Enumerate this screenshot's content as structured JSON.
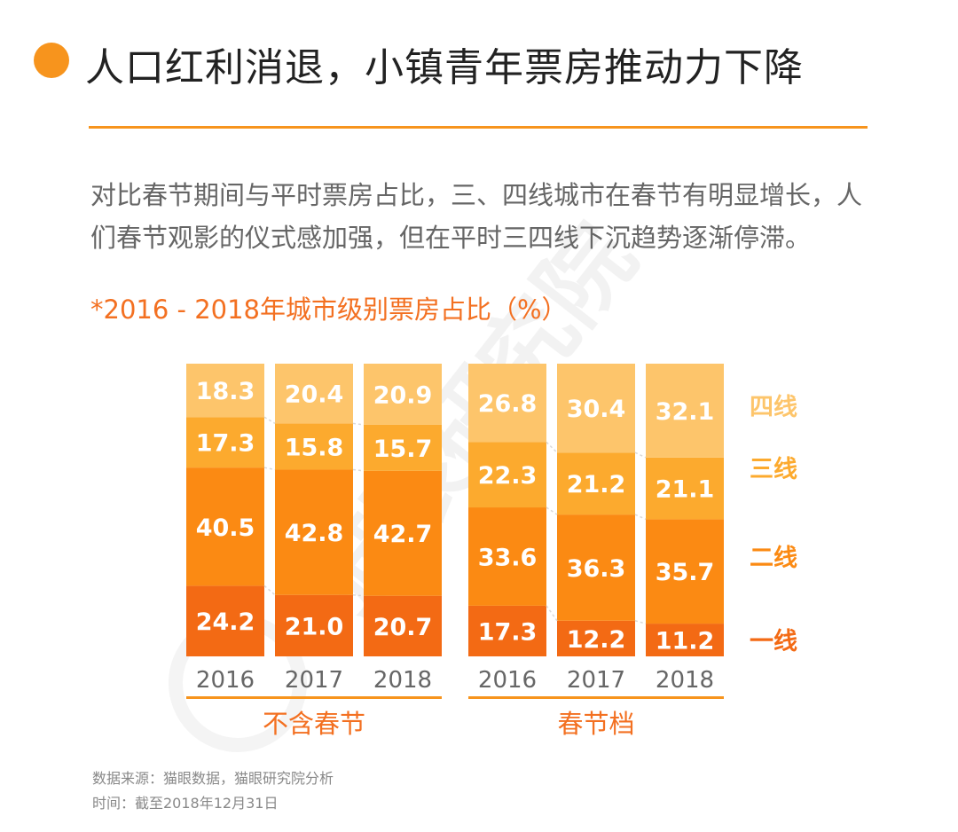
{
  "header": {
    "title": "人口红利消退，小镇青年票房推动力下降",
    "description": "对比春节期间与平时票房占比，三、四线城市在春节有明显增长，人们春节观影的仪式感加强，但在平时三四线下沉趋势逐渐停滞。"
  },
  "colors": {
    "accent": "#f7941d",
    "tier1": "#f36a14",
    "tier2": "#fb8a13",
    "tier3": "#fcaa2e",
    "tier4": "#fdc56b",
    "title_dot": "#f7941d",
    "subtitle_text": "#f37021"
  },
  "watermark": "猫眼研究院",
  "chart_data": {
    "type": "bar",
    "stacked": true,
    "title": "*2016 - 2018年城市级别票房占比（%）",
    "groups": [
      {
        "name": "不含春节",
        "categories": [
          "2016",
          "2017",
          "2018"
        ],
        "series": [
          {
            "name": "一线",
            "values": [
              24.2,
              21.0,
              20.7
            ]
          },
          {
            "name": "二线",
            "values": [
              40.5,
              42.8,
              42.7
            ]
          },
          {
            "name": "三线",
            "values": [
              17.3,
              15.8,
              15.7
            ]
          },
          {
            "name": "四线",
            "values": [
              18.3,
              20.4,
              20.9
            ]
          }
        ]
      },
      {
        "name": "春节档",
        "categories": [
          "2016",
          "2017",
          "2018"
        ],
        "series": [
          {
            "name": "一线",
            "values": [
              17.3,
              12.2,
              11.2
            ]
          },
          {
            "name": "二线",
            "values": [
              33.6,
              36.3,
              35.7
            ]
          },
          {
            "name": "三线",
            "values": [
              22.3,
              21.2,
              21.1
            ]
          },
          {
            "name": "四线",
            "values": [
              26.8,
              30.4,
              32.1
            ]
          }
        ]
      }
    ],
    "legend": [
      "四线",
      "三线",
      "二线",
      "一线"
    ],
    "legend_position": "right",
    "ylim": [
      0,
      100
    ],
    "grid": false
  },
  "footer": {
    "source": "数据来源：猫眼数据，猫眼研究院分析",
    "time": "时间：截至2018年12月31日"
  }
}
